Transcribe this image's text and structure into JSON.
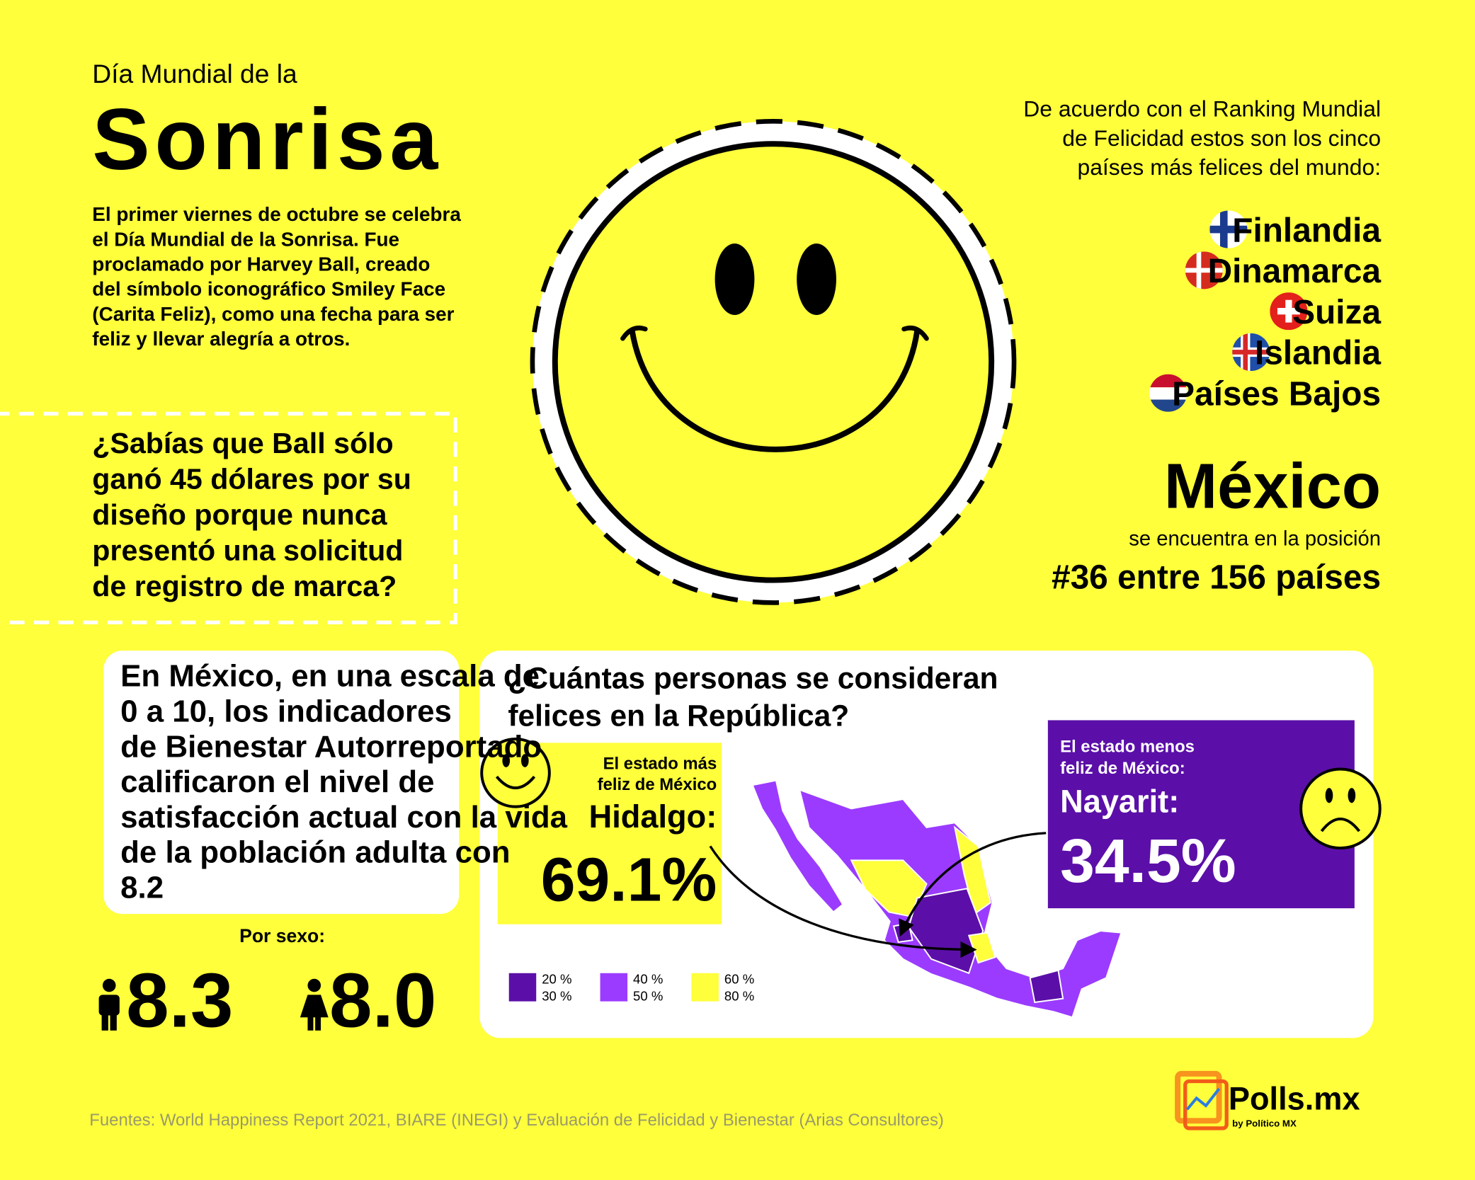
{
  "header": {
    "subtitle": "Día Mundial de la",
    "title": "Sonrisa"
  },
  "intro": {
    "lines": [
      [
        "El primer viernes de octubre se celebra"
      ],
      [
        "el Día Mundial de la Sonrisa. Fue"
      ],
      [
        "proclamado por ",
        {
          "text": "Harvey Ball",
          "bold": true
        },
        ", creado"
      ],
      [
        "del símbolo iconográfico ",
        {
          "text": "Smiley Face",
          "bold": true
        }
      ],
      [
        "(Carita Feliz), como ",
        {
          "text": "una fecha para ser",
          "bold": true
        }
      ],
      [
        {
          "text": "feliz y llevar alegría a otros.",
          "bold": true
        }
      ]
    ]
  },
  "fact": {
    "lines": [
      [
        "¿Sabías que Ball sólo"
      ],
      [
        "ganó ",
        {
          "text": "45 dólares por su",
          "bold": true
        }
      ],
      [
        {
          "text": "diseño",
          "bold": true
        },
        " porque nunca"
      ],
      [
        "presentó una solicitud"
      ],
      [
        "de registro de marca?"
      ]
    ]
  },
  "ranking": {
    "intro_lines": [
      "De acuerdo con el Ranking Mundial",
      "de Felicidad estos son los cinco",
      "países más felices del mundo:"
    ],
    "countries": [
      "Finlandia",
      "Dinamarca",
      "Suiza",
      "Islandia",
      "Países Bajos"
    ]
  },
  "mexico": {
    "name": "México",
    "position_text": "se encuentra en la posición",
    "rank": "#36 entre 156 países"
  },
  "wellbeing": {
    "lines": [
      [
        "En México, en una escala de"
      ],
      [
        {
          "text": "0 a 10",
          "bold": true
        },
        ", los indicadores"
      ],
      [
        "de Bienestar Autorreportado"
      ],
      [
        "calificaron el nivel de"
      ],
      [
        "satisfacción actual con la vida"
      ],
      [
        "de la población adulta con"
      ],
      [
        {
          "text": "8.2",
          "bold": true
        }
      ]
    ],
    "by_sex_label": "Por sexo:",
    "men": "8.3",
    "women": "8.0"
  },
  "happiness_map": {
    "question_lines": [
      "¿Cuántas personas se consideran",
      "felices en la República?"
    ],
    "happiest": {
      "lines": [
        [
          "El estado ",
          {
            "text": "más",
            "bold": true
          }
        ],
        [
          "feliz de México"
        ]
      ],
      "state": "Hidalgo:",
      "value": "69.1%"
    },
    "least_happy": {
      "lines": [
        [
          "El estado ",
          {
            "text": "menos",
            "bold": true
          }
        ],
        [
          "feliz de México:"
        ]
      ],
      "state": "Nayarit:",
      "value": "34.5%"
    },
    "legend": [
      {
        "color": "#5b0fa8",
        "labels": [
          "20 %",
          "30 %"
        ]
      },
      {
        "color": "#9b3bff",
        "labels": [
          "40 %",
          "50 %"
        ]
      },
      {
        "color": "#ffff3b",
        "labels": [
          "60 %",
          "80 %"
        ]
      }
    ]
  },
  "footer": {
    "sources": "Fuentes: World Happiness Report 2021, BIARE (INEGI) y Evaluación de Felicidad y Bienestar (Arias Consultores)",
    "brand": "Polls.mx",
    "brand_sub": "by Político MX"
  }
}
